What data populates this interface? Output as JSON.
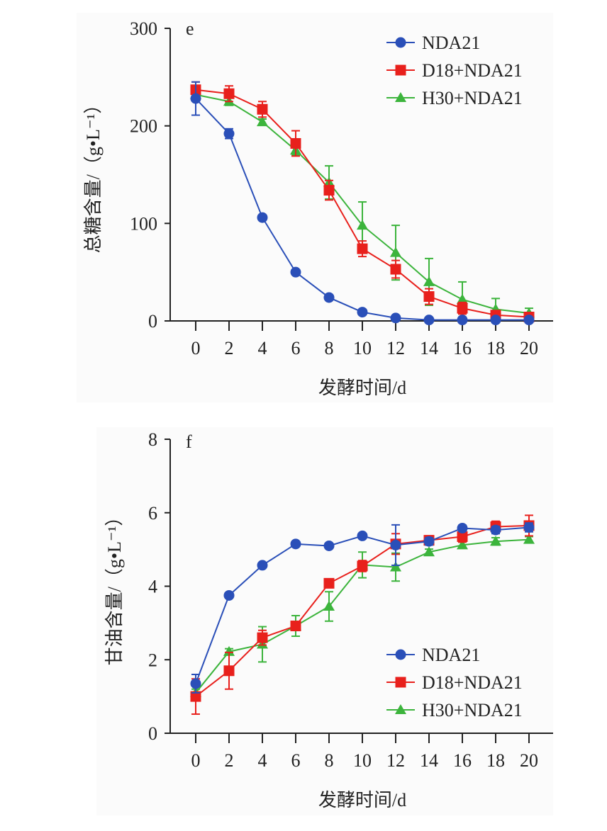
{
  "chart_data": [
    {
      "type": "line",
      "panel_label": "e",
      "title": "",
      "xlabel": "发酵时间/d",
      "ylabel": "总糖含量/（g•L⁻¹）",
      "x": [
        0,
        2,
        4,
        6,
        8,
        10,
        12,
        14,
        16,
        18,
        20
      ],
      "xticks": [
        "0",
        "2",
        "4",
        "6",
        "8",
        "10",
        "12",
        "14",
        "16",
        "18",
        "20"
      ],
      "yticks": [
        "0",
        "100",
        "200",
        "300"
      ],
      "xlim": [
        0,
        20
      ],
      "ylim": [
        0,
        300
      ],
      "grid": false,
      "legend_position": "top-right",
      "series": [
        {
          "name": "NDA21",
          "color": "#2a4fb8",
          "marker": "circle",
          "values": [
            228,
            192,
            106,
            50,
            24,
            9,
            3,
            1,
            1,
            1,
            1
          ],
          "errors": [
            17,
            5,
            2,
            2,
            2,
            1,
            1,
            1,
            1,
            1,
            1
          ]
        },
        {
          "name": "D18+NDA21",
          "color": "#e8201c",
          "marker": "square",
          "values": [
            237,
            233,
            217,
            182,
            134,
            74,
            53,
            25,
            13,
            6,
            4
          ],
          "errors": [
            8,
            8,
            8,
            13,
            10,
            8,
            9,
            8,
            6,
            3,
            3
          ]
        },
        {
          "name": "H30+NDA21",
          "color": "#3cb43c",
          "marker": "triangle",
          "values": [
            232,
            225,
            204,
            175,
            142,
            98,
            70,
            40,
            22,
            12,
            8
          ],
          "errors": [
            5,
            4,
            3,
            5,
            17,
            24,
            28,
            24,
            18,
            11,
            5
          ]
        }
      ]
    },
    {
      "type": "line",
      "panel_label": "f",
      "title": "",
      "xlabel": "发酵时间/d",
      "ylabel": "甘油含量/（g•L⁻¹）",
      "x": [
        0,
        2,
        4,
        6,
        8,
        10,
        12,
        14,
        16,
        18,
        20
      ],
      "xticks": [
        "0",
        "2",
        "4",
        "6",
        "8",
        "10",
        "12",
        "14",
        "16",
        "18",
        "20"
      ],
      "yticks": [
        "0",
        "2",
        "4",
        "6",
        "8"
      ],
      "xlim": [
        0,
        20
      ],
      "ylim": [
        0,
        8
      ],
      "grid": false,
      "legend_position": "bottom-right",
      "series": [
        {
          "name": "NDA21",
          "color": "#2a4fb8",
          "marker": "circle",
          "values": [
            1.35,
            3.75,
            4.57,
            5.15,
            5.1,
            5.37,
            5.12,
            5.22,
            5.58,
            5.53,
            5.6
          ],
          "errors": [
            0.25,
            0.05,
            0.05,
            0.05,
            0.05,
            0.05,
            0.55,
            0.1,
            0.08,
            0.1,
            0.12
          ]
        },
        {
          "name": "D18+NDA21",
          "color": "#e8201c",
          "marker": "square",
          "values": [
            1.0,
            1.7,
            2.6,
            2.92,
            4.08,
            4.55,
            5.15,
            5.25,
            5.35,
            5.62,
            5.65
          ],
          "errors": [
            0.48,
            0.5,
            0.2,
            0.12,
            0.12,
            0.15,
            0.28,
            0.12,
            0.15,
            0.15,
            0.28
          ]
        },
        {
          "name": "H30+NDA21",
          "color": "#3cb43c",
          "marker": "triangle",
          "values": [
            1.1,
            2.22,
            2.42,
            2.92,
            3.45,
            4.58,
            4.52,
            4.93,
            5.12,
            5.22,
            5.27
          ],
          "errors": [
            0.1,
            0.08,
            0.48,
            0.28,
            0.4,
            0.35,
            0.38,
            0.08,
            0.08,
            0.1,
            0.08
          ]
        }
      ]
    }
  ]
}
